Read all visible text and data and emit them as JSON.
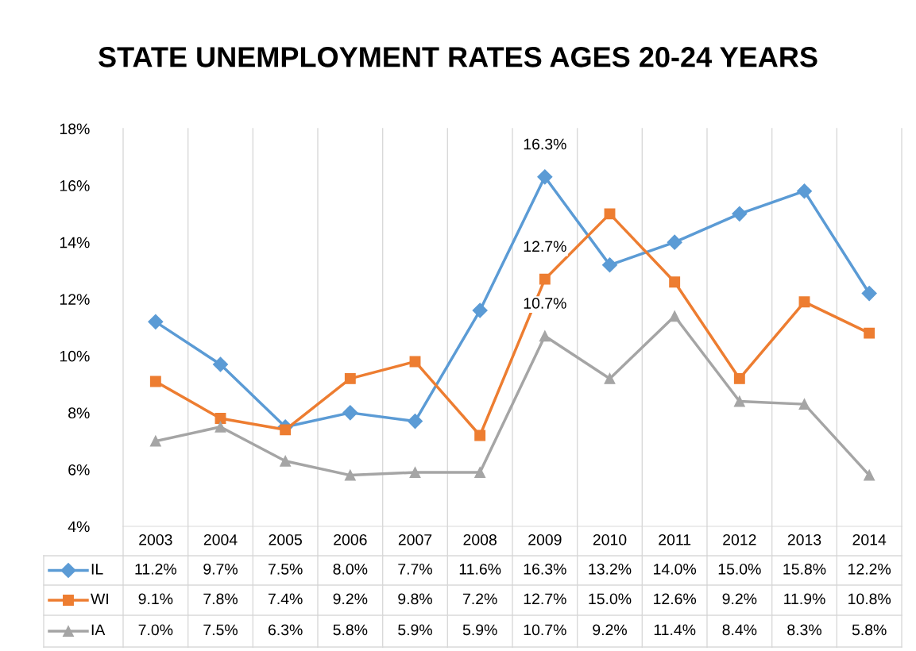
{
  "chart_data": {
    "type": "line",
    "title": "STATE UNEMPLOYMENT RATES AGES 20-24 YEARS",
    "categories": [
      "2003",
      "2004",
      "2005",
      "2006",
      "2007",
      "2008",
      "2009",
      "2010",
      "2011",
      "2012",
      "2013",
      "2014"
    ],
    "series": [
      {
        "name": "IL",
        "color": "#5b9bd5",
        "marker": "diamond",
        "values": [
          11.2,
          9.7,
          7.5,
          8.0,
          7.7,
          11.6,
          16.3,
          13.2,
          14.0,
          15.0,
          15.8,
          12.2
        ],
        "value_labels": [
          "11.2%",
          "9.7%",
          "7.5%",
          "8.0%",
          "7.7%",
          "11.6%",
          "16.3%",
          "13.2%",
          "14.0%",
          "15.0%",
          "15.8%",
          "12.2%"
        ]
      },
      {
        "name": "WI",
        "color": "#ed7d31",
        "marker": "square",
        "values": [
          9.1,
          7.8,
          7.4,
          9.2,
          9.8,
          7.2,
          12.7,
          15.0,
          12.6,
          9.2,
          11.9,
          10.8
        ],
        "value_labels": [
          "9.1%",
          "7.8%",
          "7.4%",
          "9.2%",
          "9.8%",
          "7.2%",
          "12.7%",
          "15.0%",
          "12.6%",
          "9.2%",
          "11.9%",
          "10.8%"
        ]
      },
      {
        "name": "IA",
        "color": "#a5a5a5",
        "marker": "triangle",
        "values": [
          7.0,
          7.5,
          6.3,
          5.8,
          5.9,
          5.9,
          10.7,
          9.2,
          11.4,
          8.4,
          8.3,
          5.8
        ],
        "value_labels": [
          "7.0%",
          "7.5%",
          "6.3%",
          "5.8%",
          "5.9%",
          "5.9%",
          "10.7%",
          "9.2%",
          "11.4%",
          "8.4%",
          "8.3%",
          "5.8%"
        ]
      }
    ],
    "annotations": [
      {
        "text": "16.3%",
        "x": "2009",
        "y": 16.3
      },
      {
        "text": "12.7%",
        "x": "2009",
        "y": 12.7
      },
      {
        "text": "10.7%",
        "x": "2009",
        "y": 10.7
      }
    ],
    "ylim": [
      4,
      18
    ],
    "yticks": [
      {
        "value": 4,
        "label": "4%"
      },
      {
        "value": 6,
        "label": "6%"
      },
      {
        "value": 8,
        "label": "8%"
      },
      {
        "value": 10,
        "label": "10%"
      },
      {
        "value": 12,
        "label": "12%"
      },
      {
        "value": 14,
        "label": "14%"
      },
      {
        "value": 16,
        "label": "16%"
      },
      {
        "value": 18,
        "label": "18%"
      }
    ],
    "grid": "x",
    "legend": "bottom",
    "line_style": "solid"
  }
}
